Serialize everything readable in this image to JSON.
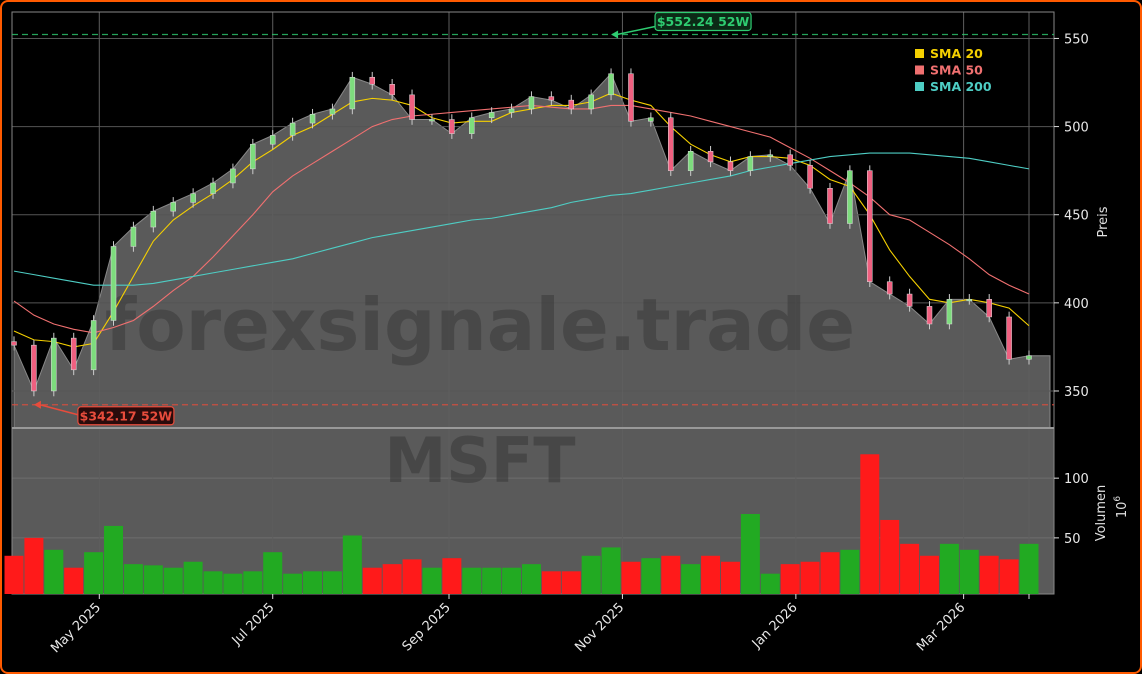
{
  "chart_data": {
    "type": "candlestick",
    "ticker": "MSFT",
    "watermark": "forexsignale.trade",
    "dates": [
      "2025-04-01",
      "2025-04-08",
      "2025-04-15",
      "2025-04-22",
      "2025-04-29",
      "2025-05-06",
      "2025-05-13",
      "2025-05-20",
      "2025-05-27",
      "2025-06-03",
      "2025-06-10",
      "2025-06-17",
      "2025-06-24",
      "2025-07-01",
      "2025-07-08",
      "2025-07-15",
      "2025-07-22",
      "2025-07-29",
      "2025-08-05",
      "2025-08-12",
      "2025-08-19",
      "2025-08-26",
      "2025-09-02",
      "2025-09-09",
      "2025-09-16",
      "2025-09-23",
      "2025-09-30",
      "2025-10-07",
      "2025-10-14",
      "2025-10-21",
      "2025-10-28",
      "2025-11-04",
      "2025-11-11",
      "2025-11-18",
      "2025-11-25",
      "2025-12-02",
      "2025-12-09",
      "2025-12-16",
      "2025-12-23",
      "2025-12-30",
      "2026-01-06",
      "2026-01-13",
      "2026-01-20",
      "2026-01-27",
      "2026-02-03",
      "2026-02-10",
      "2026-02-17",
      "2026-02-24",
      "2026-03-03",
      "2026-03-10",
      "2026-03-17",
      "2026-03-24"
    ],
    "close": [
      376,
      350,
      380,
      362,
      390,
      432,
      443,
      452,
      457,
      462,
      468,
      476,
      490,
      495,
      502,
      507,
      510,
      528,
      524,
      518,
      504,
      504,
      496,
      505,
      508,
      510,
      517,
      515,
      510,
      518,
      530,
      503,
      505,
      475,
      486,
      480,
      475,
      483,
      484,
      478,
      465,
      445,
      475,
      412,
      405,
      398,
      388,
      402,
      402,
      392,
      368,
      370
    ],
    "volume": [
      35,
      50,
      40,
      25,
      38,
      60,
      28,
      27,
      25,
      30,
      22,
      20,
      22,
      38,
      20,
      22,
      22,
      52,
      25,
      28,
      32,
      25,
      33,
      25,
      25,
      25,
      28,
      22,
      22,
      35,
      42,
      30,
      33,
      35,
      28,
      35,
      30,
      70,
      20,
      28,
      30,
      38,
      40,
      120,
      65,
      45,
      35,
      45,
      40,
      35,
      32,
      45
    ],
    "series": [
      {
        "name": "SMA 20",
        "color": "#f5d000",
        "values": [
          384,
          379,
          378,
          375,
          377,
          395,
          415,
          435,
          447,
          455,
          462,
          470,
          480,
          487,
          495,
          500,
          507,
          514,
          516,
          515,
          512,
          505,
          502,
          503,
          503,
          508,
          510,
          512,
          512,
          514,
          519,
          515,
          512,
          500,
          490,
          484,
          480,
          483,
          483,
          482,
          478,
          470,
          466,
          450,
          430,
          415,
          402,
          400,
          402,
          400,
          397,
          387
        ]
      },
      {
        "name": "SMA 50",
        "color": "#f07070",
        "values": [
          401,
          393,
          388,
          385,
          383,
          386,
          390,
          398,
          407,
          415,
          426,
          438,
          450,
          463,
          472,
          479,
          486,
          493,
          500,
          504,
          506,
          507,
          508,
          509,
          510,
          511,
          512,
          511,
          510,
          510,
          512,
          512,
          510,
          508,
          506,
          503,
          500,
          497,
          494,
          488,
          482,
          475,
          468,
          460,
          450,
          447,
          440,
          433,
          425,
          416,
          410,
          405
        ]
      },
      {
        "name": "SMA 200",
        "color": "#4ecdc4",
        "values": [
          418,
          416,
          414,
          412,
          410,
          410,
          410,
          411,
          413,
          415,
          417,
          419,
          421,
          423,
          425,
          428,
          431,
          434,
          437,
          439,
          441,
          443,
          445,
          447,
          448,
          450,
          452,
          454,
          457,
          459,
          461,
          462,
          464,
          466,
          468,
          470,
          472,
          475,
          477,
          479,
          481,
          483,
          484,
          485,
          485,
          485,
          484,
          483,
          482,
          480,
          478,
          476
        ]
      }
    ],
    "high_52w": {
      "value": 552.24,
      "label": "$552.24 52W",
      "color": "#2ecc71"
    },
    "low_52w": {
      "value": 342.17,
      "label": "$342.17 52W",
      "color": "#e74c3c"
    },
    "price_axis": {
      "label": "Preis",
      "ticks": [
        350,
        400,
        450,
        500,
        550
      ],
      "ylim": [
        329,
        565
      ]
    },
    "volume_axis": {
      "label": "Volumen",
      "multiplier": "10",
      "exponent": "6",
      "ticks": [
        50,
        100
      ],
      "ylim": [
        3,
        142
      ]
    },
    "x_ticks": [
      {
        "date": "2025-05-01",
        "label": "May 2025"
      },
      {
        "date": "2025-07-01",
        "label": "Jul 2025"
      },
      {
        "date": "2025-09-01",
        "label": "Sep 2025"
      },
      {
        "date": "2025-11-01",
        "label": "Nov 2025"
      },
      {
        "date": "2026-01-01",
        "label": "Jan 2026"
      },
      {
        "date": "2026-03-01",
        "label": "Mar 2026"
      },
      {
        "date": "2026-03-24",
        "label": ""
      }
    ],
    "legend_position": "top-right",
    "grid": true,
    "colors": {
      "up": "#22aa22",
      "down": "#ff1a1a",
      "area": "#5a5a5a",
      "frame": "#ff5a00"
    }
  }
}
